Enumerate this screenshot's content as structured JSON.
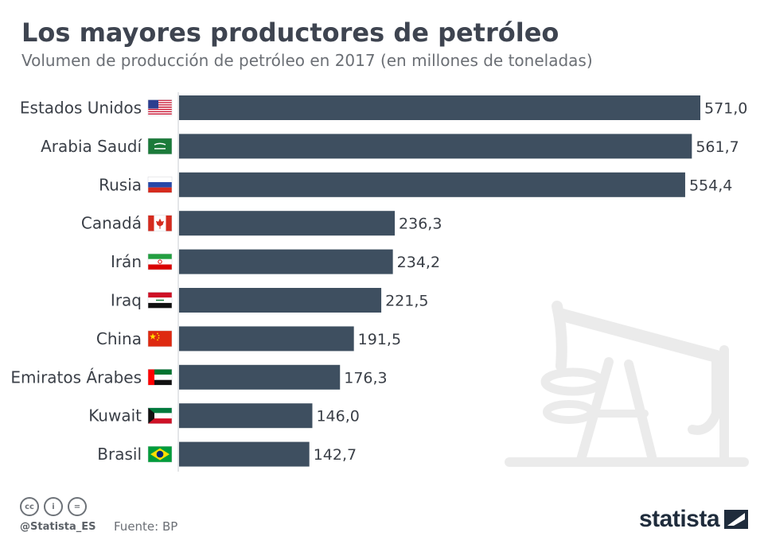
{
  "header": {
    "title": "Los mayores productores de petróleo",
    "subtitle": "Volumen de producción de petróleo en 2017 (en millones de toneladas)"
  },
  "footer": {
    "handle": "@Statista_ES",
    "source": "Fuente: BP",
    "brand": "statista",
    "license_icons": [
      "cc-icon",
      "by-icon",
      "nd-icon"
    ]
  },
  "colors": {
    "bar": "#3e4f60",
    "label": "#3a3f47",
    "axis": "#c8ccd0",
    "watermark": "#ebebeb"
  },
  "chart_data": {
    "type": "bar",
    "orientation": "horizontal",
    "categories": [
      "Estados Unidos",
      "Arabia Saudí",
      "Rusia",
      "Canadá",
      "Irán",
      "Iraq",
      "China",
      "Emiratos Árabes",
      "Kuwait",
      "Brasil"
    ],
    "values": [
      571.0,
      561.7,
      554.4,
      236.3,
      234.2,
      221.5,
      191.5,
      176.3,
      146.0,
      142.7
    ],
    "value_labels": [
      "571,0",
      "561,7",
      "554,4",
      "236,3",
      "234,2",
      "221,5",
      "191,5",
      "176,3",
      "146,0",
      "142,7"
    ],
    "flags": [
      "us-flag-icon",
      "sa-flag-icon",
      "ru-flag-icon",
      "ca-flag-icon",
      "ir-flag-icon",
      "iq-flag-icon",
      "cn-flag-icon",
      "ae-flag-icon",
      "kw-flag-icon",
      "br-flag-icon"
    ],
    "xlim": [
      0,
      571.0
    ],
    "grid": false,
    "legend": "none"
  }
}
